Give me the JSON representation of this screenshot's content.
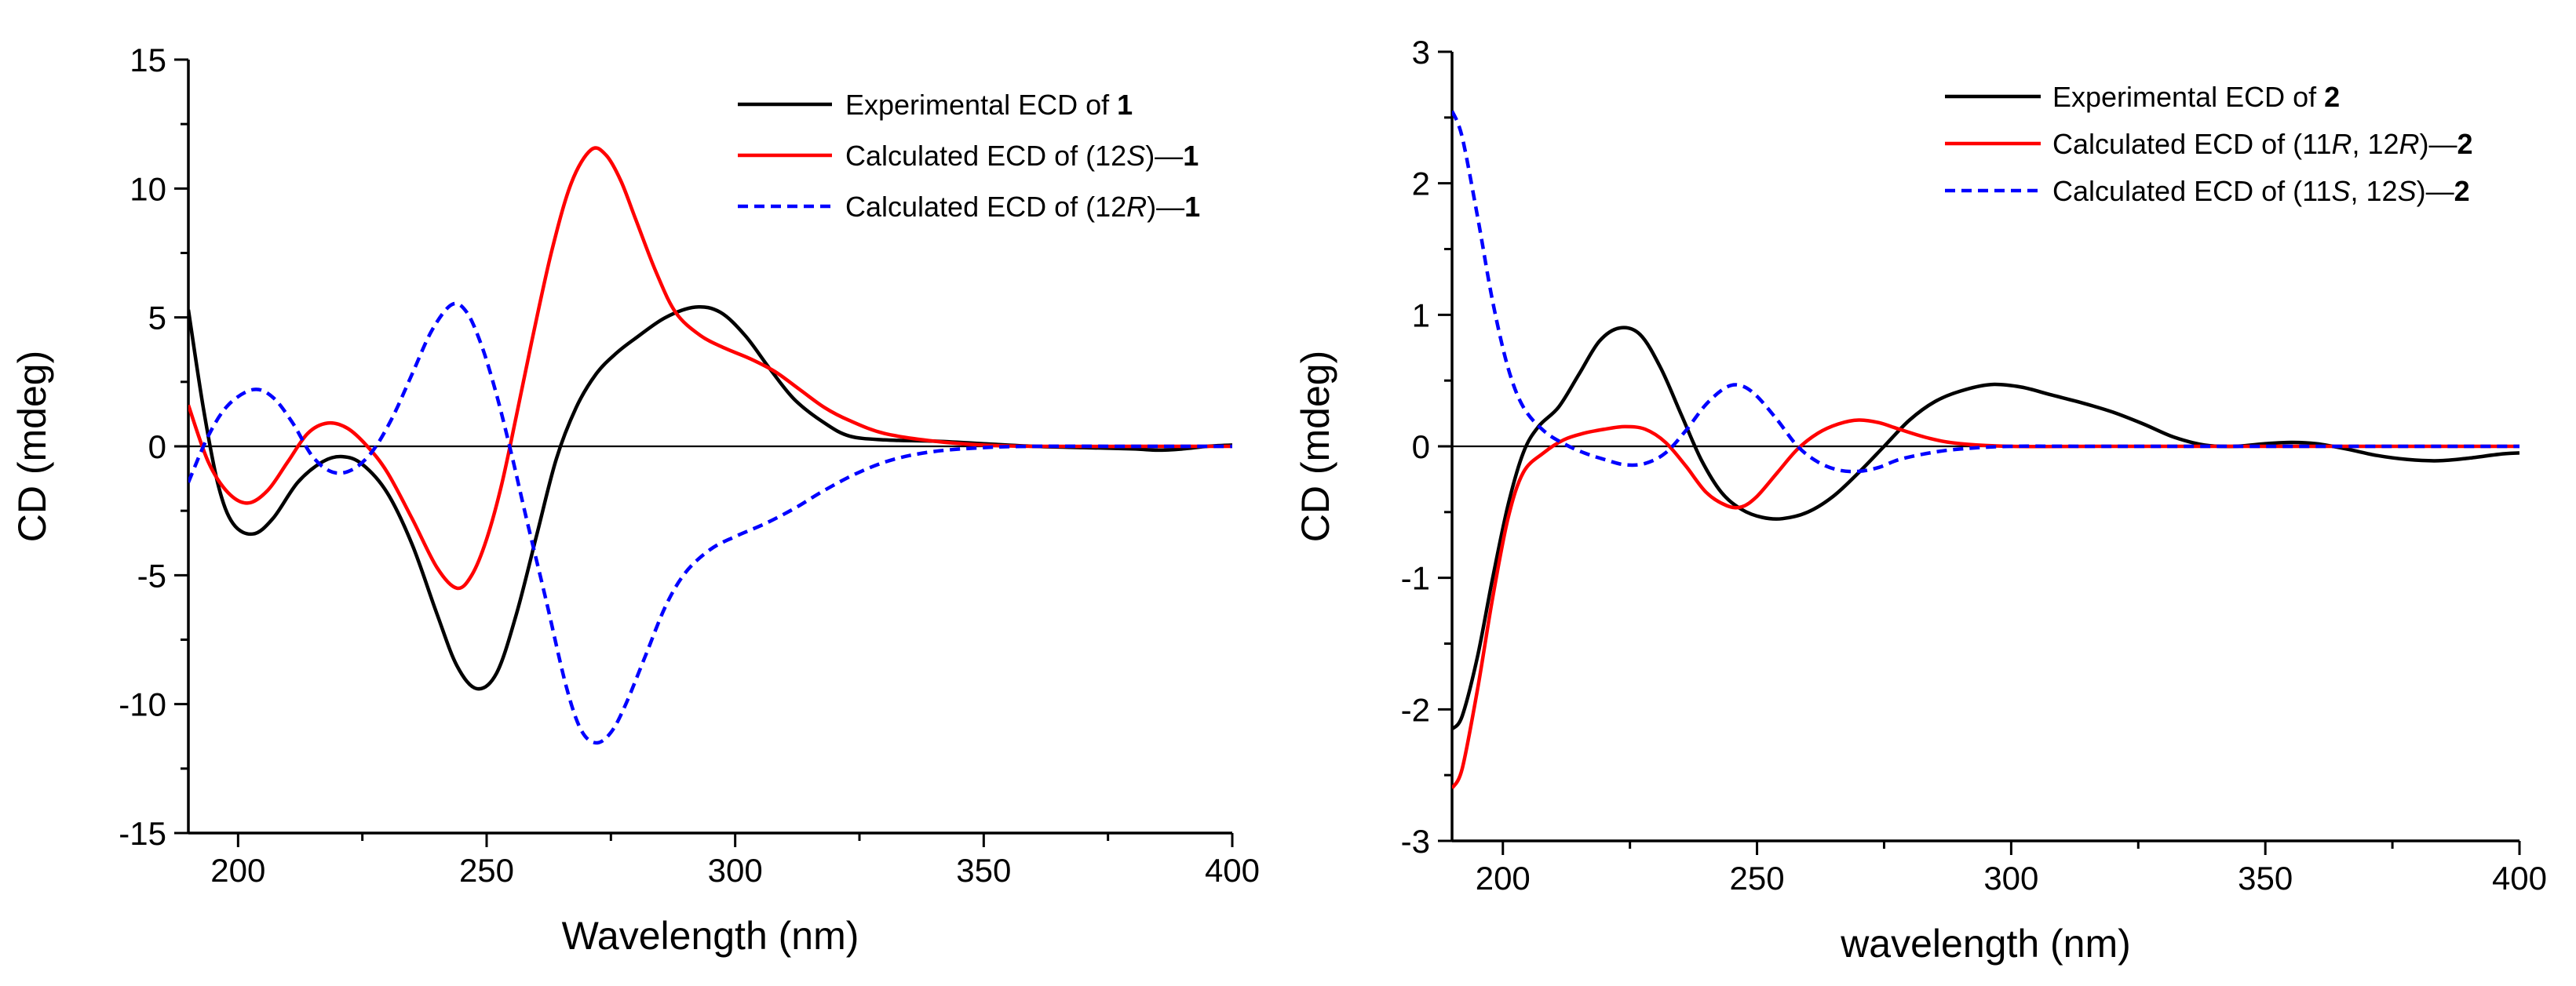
{
  "figure": {
    "description_free": true
  },
  "chart_data": [
    {
      "id": "left",
      "type": "line",
      "xlabel": "Wavelength (nm)",
      "ylabel": "CD (mdeg)",
      "xlim": [
        190,
        400
      ],
      "ylim": [
        -15,
        15
      ],
      "xticks": [
        200,
        250,
        300,
        350,
        400
      ],
      "yticks": [
        -15,
        -10,
        -5,
        0,
        5,
        10,
        15
      ],
      "zero_line": true,
      "legend_position": "top-right",
      "series": [
        {
          "name": "Experimental ECD of 1",
          "legend_parts": [
            {
              "t": "Experimental ECD of "
            },
            {
              "t": "1",
              "b": true
            }
          ],
          "color": "#000000",
          "dash": false,
          "points": [
            [
              190,
              5.3
            ],
            [
              193,
              1.5
            ],
            [
              196,
              -1.5
            ],
            [
              199,
              -3.0
            ],
            [
              203,
              -3.4
            ],
            [
              207,
              -2.8
            ],
            [
              212,
              -1.4
            ],
            [
              217,
              -0.6
            ],
            [
              221,
              -0.4
            ],
            [
              225,
              -0.7
            ],
            [
              230,
              -1.8
            ],
            [
              235,
              -3.8
            ],
            [
              240,
              -6.5
            ],
            [
              244,
              -8.5
            ],
            [
              248,
              -9.4
            ],
            [
              252,
              -8.8
            ],
            [
              256,
              -6.5
            ],
            [
              260,
              -3.5
            ],
            [
              264,
              -0.5
            ],
            [
              268,
              1.5
            ],
            [
              272,
              2.8
            ],
            [
              276,
              3.6
            ],
            [
              280,
              4.2
            ],
            [
              286,
              5.0
            ],
            [
              292,
              5.4
            ],
            [
              297,
              5.2
            ],
            [
              302,
              4.3
            ],
            [
              307,
              3.0
            ],
            [
              312,
              1.8
            ],
            [
              318,
              0.9
            ],
            [
              323,
              0.4
            ],
            [
              330,
              0.25
            ],
            [
              340,
              0.2
            ],
            [
              350,
              0.1
            ],
            [
              360,
              0.0
            ],
            [
              370,
              -0.05
            ],
            [
              380,
              -0.1
            ],
            [
              385,
              -0.15
            ],
            [
              390,
              -0.1
            ],
            [
              395,
              0.0
            ],
            [
              400,
              0.05
            ]
          ]
        },
        {
          "name": "Calculated ECD of (12S)-1",
          "legend_parts": [
            {
              "t": "Calculated ECD of (12"
            },
            {
              "t": "S",
              "i": true
            },
            {
              "t": ")—"
            },
            {
              "t": "1",
              "b": true
            }
          ],
          "color": "#ff0000",
          "dash": false,
          "points": [
            [
              190,
              1.6
            ],
            [
              194,
              -0.6
            ],
            [
              198,
              -1.8
            ],
            [
              202,
              -2.2
            ],
            [
              206,
              -1.7
            ],
            [
              210,
              -0.6
            ],
            [
              214,
              0.5
            ],
            [
              218,
              0.9
            ],
            [
              222,
              0.7
            ],
            [
              226,
              0.0
            ],
            [
              230,
              -1.0
            ],
            [
              235,
              -2.8
            ],
            [
              240,
              -4.7
            ],
            [
              244,
              -5.5
            ],
            [
              247,
              -5.0
            ],
            [
              250,
              -3.6
            ],
            [
              253,
              -1.5
            ],
            [
              256,
              1.2
            ],
            [
              259,
              4.0
            ],
            [
              263,
              7.5
            ],
            [
              267,
              10.2
            ],
            [
              271,
              11.5
            ],
            [
              274,
              11.3
            ],
            [
              277,
              10.3
            ],
            [
              280,
              8.8
            ],
            [
              284,
              6.8
            ],
            [
              288,
              5.2
            ],
            [
              293,
              4.3
            ],
            [
              298,
              3.8
            ],
            [
              303,
              3.4
            ],
            [
              308,
              2.9
            ],
            [
              313,
              2.2
            ],
            [
              318,
              1.5
            ],
            [
              323,
              1.0
            ],
            [
              330,
              0.5
            ],
            [
              340,
              0.2
            ],
            [
              350,
              0.05
            ],
            [
              360,
              0.0
            ],
            [
              380,
              0.0
            ],
            [
              400,
              0.0
            ]
          ]
        },
        {
          "name": "Calculated ECD of (12R)-1",
          "legend_parts": [
            {
              "t": "Calculated ECD of (12"
            },
            {
              "t": "R",
              "i": true
            },
            {
              "t": ")—"
            },
            {
              "t": "1",
              "b": true
            }
          ],
          "color": "#0000ff",
          "dash": true,
          "points": [
            [
              190,
              -1.4
            ],
            [
              194,
              0.4
            ],
            [
              198,
              1.6
            ],
            [
              203,
              2.2
            ],
            [
              207,
              1.9
            ],
            [
              211,
              0.9
            ],
            [
              215,
              -0.4
            ],
            [
              219,
              -1.0
            ],
            [
              223,
              -0.9
            ],
            [
              227,
              -0.2
            ],
            [
              231,
              1.1
            ],
            [
              235,
              2.8
            ],
            [
              239,
              4.5
            ],
            [
              243,
              5.5
            ],
            [
              246,
              5.2
            ],
            [
              249,
              3.9
            ],
            [
              252,
              2.0
            ],
            [
              255,
              -0.3
            ],
            [
              258,
              -2.8
            ],
            [
              262,
              -6.0
            ],
            [
              266,
              -9.3
            ],
            [
              269,
              -11.0
            ],
            [
              272,
              -11.5
            ],
            [
              275,
              -11.1
            ],
            [
              278,
              -10.0
            ],
            [
              282,
              -8.1
            ],
            [
              286,
              -6.2
            ],
            [
              290,
              -4.9
            ],
            [
              295,
              -4.0
            ],
            [
              300,
              -3.5
            ],
            [
              306,
              -3.0
            ],
            [
              312,
              -2.4
            ],
            [
              318,
              -1.7
            ],
            [
              325,
              -1.0
            ],
            [
              332,
              -0.5
            ],
            [
              340,
              -0.2
            ],
            [
              350,
              -0.05
            ],
            [
              360,
              0.0
            ],
            [
              380,
              0.0
            ],
            [
              400,
              0.0
            ]
          ]
        }
      ]
    },
    {
      "id": "right",
      "type": "line",
      "xlabel": "wavelength (nm)",
      "ylabel": "CD (mdeg)",
      "xlim": [
        190,
        400
      ],
      "ylim": [
        -3,
        3
      ],
      "xticks": [
        200,
        250,
        300,
        350,
        400
      ],
      "yticks": [
        -3,
        -2,
        -1,
        0,
        1,
        2,
        3
      ],
      "zero_line": true,
      "legend_position": "top-right",
      "series": [
        {
          "name": "Experimental ECD of 2",
          "legend_parts": [
            {
              "t": "Experimental ECD of "
            },
            {
              "t": "2",
              "b": true
            }
          ],
          "color": "#000000",
          "dash": false,
          "points": [
            [
              190,
              -2.15
            ],
            [
              192,
              -2.05
            ],
            [
              195,
              -1.6
            ],
            [
              198,
              -1.0
            ],
            [
              201,
              -0.45
            ],
            [
              204,
              -0.05
            ],
            [
              207,
              0.15
            ],
            [
              211,
              0.3
            ],
            [
              215,
              0.55
            ],
            [
              219,
              0.8
            ],
            [
              223,
              0.9
            ],
            [
              227,
              0.85
            ],
            [
              231,
              0.6
            ],
            [
              235,
              0.25
            ],
            [
              239,
              -0.1
            ],
            [
              243,
              -0.35
            ],
            [
              247,
              -0.48
            ],
            [
              251,
              -0.54
            ],
            [
              255,
              -0.55
            ],
            [
              260,
              -0.5
            ],
            [
              265,
              -0.38
            ],
            [
              270,
              -0.2
            ],
            [
              275,
              0.0
            ],
            [
              280,
              0.2
            ],
            [
              285,
              0.34
            ],
            [
              290,
              0.42
            ],
            [
              296,
              0.47
            ],
            [
              302,
              0.45
            ],
            [
              308,
              0.39
            ],
            [
              314,
              0.33
            ],
            [
              320,
              0.26
            ],
            [
              326,
              0.17
            ],
            [
              332,
              0.07
            ],
            [
              338,
              0.01
            ],
            [
              344,
              0.0
            ],
            [
              350,
              0.02
            ],
            [
              355,
              0.03
            ],
            [
              360,
              0.02
            ],
            [
              366,
              -0.02
            ],
            [
              372,
              -0.07
            ],
            [
              378,
              -0.1
            ],
            [
              384,
              -0.11
            ],
            [
              390,
              -0.09
            ],
            [
              396,
              -0.06
            ],
            [
              400,
              -0.05
            ]
          ]
        },
        {
          "name": "Calculated ECD of (11R, 12R)-2",
          "legend_parts": [
            {
              "t": "Calculated ECD of (11"
            },
            {
              "t": "R",
              "i": true
            },
            {
              "t": ", 12"
            },
            {
              "t": "R",
              "i": true
            },
            {
              "t": ")—"
            },
            {
              "t": "2",
              "b": true
            }
          ],
          "color": "#ff0000",
          "dash": false,
          "points": [
            [
              190,
              -2.6
            ],
            [
              192,
              -2.45
            ],
            [
              195,
              -1.85
            ],
            [
              198,
              -1.15
            ],
            [
              201,
              -0.55
            ],
            [
              204,
              -0.2
            ],
            [
              208,
              -0.05
            ],
            [
              212,
              0.05
            ],
            [
              216,
              0.1
            ],
            [
              220,
              0.13
            ],
            [
              224,
              0.15
            ],
            [
              228,
              0.13
            ],
            [
              232,
              0.03
            ],
            [
              236,
              -0.15
            ],
            [
              240,
              -0.35
            ],
            [
              244,
              -0.45
            ],
            [
              247,
              -0.46
            ],
            [
              250,
              -0.38
            ],
            [
              254,
              -0.2
            ],
            [
              258,
              -0.02
            ],
            [
              262,
              0.1
            ],
            [
              266,
              0.17
            ],
            [
              270,
              0.2
            ],
            [
              274,
              0.18
            ],
            [
              278,
              0.13
            ],
            [
              284,
              0.06
            ],
            [
              290,
              0.02
            ],
            [
              300,
              0.0
            ],
            [
              320,
              0.0
            ],
            [
              400,
              0.0
            ]
          ]
        },
        {
          "name": "Calculated ECD of (11S, 12S)-2",
          "legend_parts": [
            {
              "t": "Calculated ECD of (11"
            },
            {
              "t": "S",
              "i": true
            },
            {
              "t": ", 12"
            },
            {
              "t": "S",
              "i": true
            },
            {
              "t": ")—"
            },
            {
              "t": "2",
              "b": true
            }
          ],
          "color": "#0000ff",
          "dash": true,
          "points": [
            [
              190,
              2.55
            ],
            [
              192,
              2.35
            ],
            [
              195,
              1.75
            ],
            [
              198,
              1.1
            ],
            [
              201,
              0.6
            ],
            [
              204,
              0.3
            ],
            [
              208,
              0.12
            ],
            [
              212,
              0.02
            ],
            [
              216,
              -0.05
            ],
            [
              220,
              -0.1
            ],
            [
              224,
              -0.14
            ],
            [
              228,
              -0.13
            ],
            [
              232,
              -0.05
            ],
            [
              236,
              0.12
            ],
            [
              240,
              0.32
            ],
            [
              244,
              0.45
            ],
            [
              247,
              0.46
            ],
            [
              250,
              0.38
            ],
            [
              254,
              0.2
            ],
            [
              258,
              0.0
            ],
            [
              262,
              -0.12
            ],
            [
              266,
              -0.18
            ],
            [
              270,
              -0.19
            ],
            [
              274,
              -0.16
            ],
            [
              278,
              -0.1
            ],
            [
              284,
              -0.05
            ],
            [
              290,
              -0.02
            ],
            [
              300,
              0.0
            ],
            [
              320,
              0.0
            ],
            [
              400,
              0.0
            ]
          ]
        }
      ]
    }
  ]
}
